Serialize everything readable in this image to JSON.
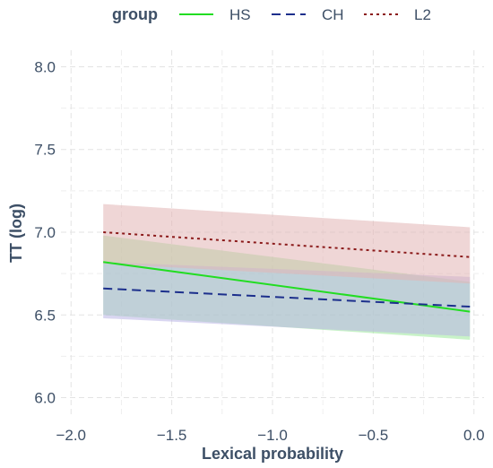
{
  "chart_data": {
    "type": "line",
    "xlabel": "Lexical probability",
    "ylabel": "TT (log)",
    "xlim": [
      -2.05,
      0.05
    ],
    "ylim": [
      5.9,
      8.1
    ],
    "x_ticks": [
      -2.0,
      -1.5,
      -1.0,
      -0.5,
      0.0
    ],
    "x_tick_labels": [
      "−2.0",
      "−1.5",
      "−1.0",
      "−0.5",
      "0.0"
    ],
    "y_ticks": [
      6.0,
      6.5,
      7.0,
      7.5,
      8.0
    ],
    "y_tick_labels": [
      "6.0",
      "6.5",
      "7.0",
      "7.5",
      "8.0"
    ],
    "grid": true,
    "legend": {
      "title": "group",
      "position": "top",
      "entries": [
        "HS",
        "CH",
        "L2"
      ]
    },
    "series": [
      {
        "name": "HS",
        "color": "#22dd22",
        "linestyle": "solid",
        "x": [
          -1.84,
          -0.02
        ],
        "y": [
          6.82,
          6.52
        ],
        "ci_lower": [
          6.5,
          6.35
        ],
        "ci_upper": [
          6.98,
          6.7
        ],
        "fill": "#9be89b"
      },
      {
        "name": "CH",
        "color": "#1c2f8c",
        "linestyle": "dashed",
        "x": [
          -1.84,
          -0.02
        ],
        "y": [
          6.66,
          6.55
        ],
        "ci_lower": [
          6.48,
          6.37
        ],
        "ci_upper": [
          6.82,
          6.73
        ],
        "fill": "#b9b4e6"
      },
      {
        "name": "L2",
        "color": "#8b1a1a",
        "linestyle": "dotted",
        "x": [
          -1.84,
          -0.02
        ],
        "y": [
          7.0,
          6.85
        ],
        "ci_lower": [
          6.81,
          6.69
        ],
        "ci_upper": [
          7.17,
          7.03
        ],
        "fill": "#e2b5b5"
      }
    ]
  }
}
